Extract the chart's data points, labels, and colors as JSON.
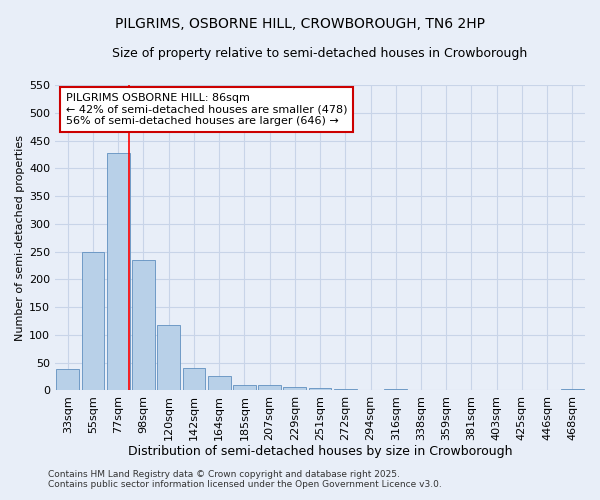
{
  "title1": "PILGRIMS, OSBORNE HILL, CROWBOROUGH, TN6 2HP",
  "title2": "Size of property relative to semi-detached houses in Crowborough",
  "xlabel": "Distribution of semi-detached houses by size in Crowborough",
  "ylabel": "Number of semi-detached properties",
  "categories": [
    "33sqm",
    "55sqm",
    "77sqm",
    "98sqm",
    "120sqm",
    "142sqm",
    "164sqm",
    "185sqm",
    "207sqm",
    "229sqm",
    "251sqm",
    "272sqm",
    "294sqm",
    "316sqm",
    "338sqm",
    "359sqm",
    "381sqm",
    "403sqm",
    "425sqm",
    "446sqm",
    "468sqm"
  ],
  "values": [
    38,
    250,
    428,
    235,
    118,
    40,
    25,
    10,
    10,
    6,
    4,
    2,
    0,
    3,
    0,
    1,
    0,
    0,
    0,
    1,
    3
  ],
  "bar_color": "#b8d0e8",
  "bar_edge_color": "#6090c0",
  "grid_color": "#c8d4e8",
  "background_color": "#e8eef8",
  "red_line_x": 2.425,
  "annotation_text": "PILGRIMS OSBORNE HILL: 86sqm\n← 42% of semi-detached houses are smaller (478)\n56% of semi-detached houses are larger (646) →",
  "annotation_box_color": "#ffffff",
  "annotation_box_edge": "#cc0000",
  "footnote1": "Contains HM Land Registry data © Crown copyright and database right 2025.",
  "footnote2": "Contains public sector information licensed under the Open Government Licence v3.0.",
  "ylim": [
    0,
    550
  ],
  "yticks": [
    0,
    50,
    100,
    150,
    200,
    250,
    300,
    350,
    400,
    450,
    500,
    550
  ],
  "title1_fontsize": 10,
  "title2_fontsize": 9,
  "xlabel_fontsize": 9,
  "ylabel_fontsize": 8,
  "tick_fontsize": 8,
  "annot_fontsize": 8,
  "footnote_fontsize": 6.5
}
